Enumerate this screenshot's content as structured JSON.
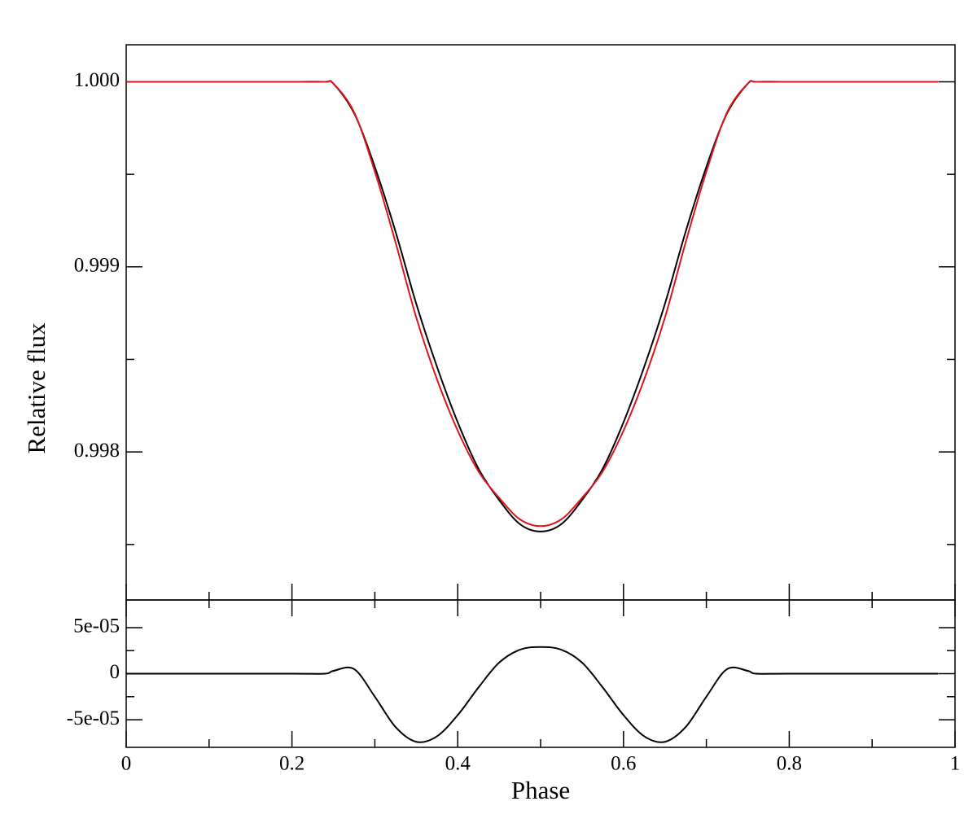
{
  "chart_data": [
    {
      "type": "line",
      "ylabel": "Relative flux",
      "x": [
        0,
        0.1,
        0.2,
        0.24,
        0.25,
        0.275,
        0.3,
        0.325,
        0.35,
        0.375,
        0.4,
        0.425,
        0.45,
        0.475,
        0.5,
        0.525,
        0.55,
        0.575,
        0.6,
        0.625,
        0.65,
        0.675,
        0.7,
        0.725,
        0.75,
        0.76,
        0.8,
        0.9,
        0.98
      ],
      "series": [
        {
          "color": "#000000",
          "values": [
            1,
            1,
            1,
            1,
            0.99999,
            0.99983,
            0.99954,
            0.99919,
            0.9988,
            0.99846,
            0.99816,
            0.99791,
            0.99774,
            0.99761,
            0.99757,
            0.99761,
            0.99774,
            0.99791,
            0.99816,
            0.99846,
            0.9988,
            0.99919,
            0.99954,
            0.99983,
            0.99999,
            1,
            1,
            1,
            1
          ]
        },
        {
          "color": "#e0141c",
          "values": [
            1,
            1,
            1,
            1,
            0.99999,
            0.999835,
            0.999515,
            0.999132,
            0.998726,
            0.998392,
            0.998115,
            0.997895,
            0.997752,
            0.997636,
            0.997599,
            0.997636,
            0.997752,
            0.997895,
            0.998115,
            0.998392,
            0.998726,
            0.999132,
            0.999515,
            0.999835,
            0.99999,
            1,
            1,
            1,
            1
          ]
        }
      ],
      "xlim": [
        0,
        1
      ],
      "xticks": [
        0,
        0.2,
        0.4,
        0.6,
        0.8,
        1
      ],
      "xticks_minor": [
        0.1,
        0.3,
        0.5,
        0.7,
        0.9
      ],
      "ylim": [
        0.9972,
        1.0002
      ],
      "yticks": [
        {
          "value": 1,
          "label": "1.000"
        },
        0.999,
        0.998
      ],
      "yticks_minor": [
        0.9995,
        0.9985,
        0.9975
      ]
    },
    {
      "type": "line",
      "xlabel": "Phase",
      "x": [
        0,
        0.1,
        0.2,
        0.24,
        0.25,
        0.275,
        0.3,
        0.325,
        0.35,
        0.375,
        0.4,
        0.425,
        0.45,
        0.475,
        0.5,
        0.525,
        0.55,
        0.575,
        0.6,
        0.625,
        0.65,
        0.675,
        0.7,
        0.725,
        0.75,
        0.76,
        0.8,
        0.9,
        0.98
      ],
      "series": [
        {
          "color": "#000000",
          "values": [
            0,
            0,
            0,
            0,
            3e-06,
            5e-06,
            -2.5e-05,
            -5.8e-05,
            -7.4e-05,
            -6.8e-05,
            -4.5e-05,
            -1.5e-05,
            1.2e-05,
            2.6e-05,
            2.9e-05,
            2.6e-05,
            1.2e-05,
            -1.5e-05,
            -4.5e-05,
            -6.8e-05,
            -7.4e-05,
            -5.8e-05,
            -2.5e-05,
            5e-06,
            3e-06,
            0,
            0,
            0,
            0
          ]
        }
      ],
      "xlim": [
        0,
        1
      ],
      "xticks": [
        0,
        0.2,
        0.4,
        0.6,
        0.8,
        1
      ],
      "xticks_minor": [
        0.1,
        0.3,
        0.5,
        0.7,
        0.9
      ],
      "ylim": [
        -8e-05,
        8e-05
      ],
      "yticks": [
        {
          "value": 5e-05,
          "label": "5e-05"
        },
        0,
        {
          "value": -5e-05,
          "label": "-5e-05"
        }
      ],
      "yticks_minor": [
        2.5e-05,
        -2.5e-05
      ]
    }
  ]
}
